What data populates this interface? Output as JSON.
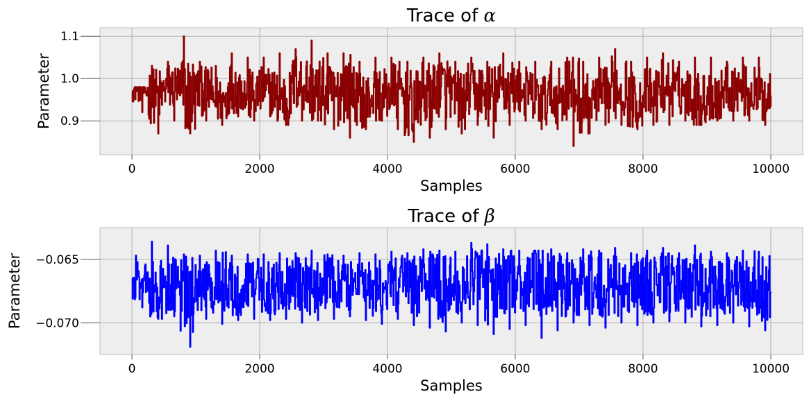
{
  "chart_data": [
    {
      "type": "line",
      "title_prefix": "Trace of ",
      "title_symbol": "α",
      "xlabel": "Samples",
      "ylabel": "Parameter",
      "xlim": [
        -500,
        10500
      ],
      "ylim": [
        0.82,
        1.12
      ],
      "xticks": [
        0,
        2000,
        4000,
        6000,
        8000,
        10000
      ],
      "xtick_labels": [
        "0",
        "2000",
        "4000",
        "6000",
        "8000",
        "10000"
      ],
      "yticks": [
        0.9,
        1.0,
        1.1
      ],
      "ytick_labels": [
        "0.9",
        "1.0",
        "1.1"
      ],
      "grid": true,
      "series": [
        {
          "color": "#8b0000",
          "x": [
            0,
            250,
            500,
            750,
            1000,
            1250,
            1500,
            1750,
            2000,
            2250,
            2500,
            2750,
            3000,
            3250,
            3500,
            3750,
            4000,
            4250,
            4500,
            4750,
            5000,
            5250,
            5500,
            5750,
            6000,
            6250,
            6500,
            6750,
            7000,
            7250,
            7500,
            7750,
            8000,
            8250,
            8500,
            8750,
            9000,
            9250,
            9500,
            9750,
            10000
          ],
          "y": [
            0.97,
            0.96,
            0.98,
            0.96,
            0.97,
            0.95,
            0.98,
            0.96,
            0.97,
            0.95,
            0.99,
            0.97,
            0.96,
            0.98,
            0.95,
            0.96,
            0.97,
            0.94,
            0.96,
            0.98,
            0.95,
            0.97,
            0.96,
            0.98,
            0.97,
            0.95,
            0.96,
            0.97,
            0.94,
            0.96,
            0.98,
            0.95,
            0.96,
            0.98,
            0.97,
            0.95,
            0.96,
            0.98,
            0.97,
            0.96,
            0.96
          ],
          "y_min": [
            0.92,
            0.87,
            0.9,
            0.87,
            0.9,
            0.89,
            0.91,
            0.9,
            0.91,
            0.89,
            0.9,
            0.9,
            0.88,
            0.86,
            0.88,
            0.9,
            0.88,
            0.85,
            0.86,
            0.88,
            0.87,
            0.89,
            0.86,
            0.89,
            0.9,
            0.88,
            0.88,
            0.84,
            0.87,
            0.89,
            0.89,
            0.88,
            0.89,
            0.89,
            0.9,
            0.89,
            0.9,
            0.9,
            0.9,
            0.89,
            0.93
          ],
          "y_max": [
            0.98,
            1.03,
            1.04,
            1.1,
            1.04,
            1.03,
            1.06,
            1.05,
            1.05,
            1.06,
            1.07,
            1.09,
            1.06,
            1.06,
            1.04,
            1.05,
            1.05,
            1.04,
            1.05,
            1.06,
            1.04,
            1.05,
            1.04,
            1.06,
            1.04,
            1.04,
            1.04,
            1.05,
            1.04,
            1.05,
            1.07,
            1.04,
            1.05,
            1.06,
            1.04,
            1.05,
            1.05,
            1.04,
            1.05,
            1.05,
            1.05
          ]
        }
      ]
    },
    {
      "type": "line",
      "title_prefix": "Trace of ",
      "title_symbol": "β",
      "xlabel": "Samples",
      "ylabel": "Parameter",
      "xlim": [
        -500,
        10500
      ],
      "ylim": [
        -0.0725,
        -0.0625
      ],
      "xticks": [
        0,
        2000,
        4000,
        6000,
        8000,
        10000
      ],
      "xtick_labels": [
        "0",
        "2000",
        "4000",
        "6000",
        "8000",
        "10000"
      ],
      "yticks": [
        -0.065,
        -0.07
      ],
      "ytick_labels": [
        "−0.065",
        "−0.070"
      ],
      "grid": true,
      "series": [
        {
          "color": "#0000ff",
          "x": [
            0,
            250,
            500,
            750,
            1000,
            1250,
            1500,
            1750,
            2000,
            2250,
            2500,
            2750,
            3000,
            3250,
            3500,
            3750,
            4000,
            4250,
            4500,
            4750,
            5000,
            5250,
            5500,
            5750,
            6000,
            6250,
            6500,
            6750,
            7000,
            7250,
            7500,
            7750,
            8000,
            8250,
            8500,
            8750,
            9000,
            9250,
            9500,
            9750,
            10000
          ],
          "y": [
            -0.0665,
            -0.0675,
            -0.0672,
            -0.0678,
            -0.067,
            -0.0668,
            -0.0673,
            -0.067,
            -0.0672,
            -0.0669,
            -0.0671,
            -0.0674,
            -0.0668,
            -0.067,
            -0.0673,
            -0.0672,
            -0.0669,
            -0.0671,
            -0.0668,
            -0.0673,
            -0.067,
            -0.0668,
            -0.0672,
            -0.0669,
            -0.0671,
            -0.0667,
            -0.067,
            -0.0673,
            -0.0668,
            -0.067,
            -0.0672,
            -0.0669,
            -0.067,
            -0.0668,
            -0.0671,
            -0.0669,
            -0.0672,
            -0.067,
            -0.0668,
            -0.0673,
            -0.0677
          ],
          "y_min": [
            -0.0688,
            -0.0697,
            -0.0695,
            -0.0719,
            -0.0697,
            -0.0701,
            -0.0698,
            -0.0697,
            -0.0698,
            -0.0697,
            -0.07,
            -0.0698,
            -0.0697,
            -0.0695,
            -0.0698,
            -0.0701,
            -0.0697,
            -0.0702,
            -0.0704,
            -0.0707,
            -0.07,
            -0.0702,
            -0.0709,
            -0.0705,
            -0.0702,
            -0.0712,
            -0.0706,
            -0.07,
            -0.0702,
            -0.0704,
            -0.07,
            -0.0702,
            -0.07,
            -0.0699,
            -0.07,
            -0.0703,
            -0.0702,
            -0.07,
            -0.0703,
            -0.0706,
            -0.0692
          ],
          "y_max": [
            -0.0647,
            -0.0636,
            -0.0639,
            -0.0646,
            -0.0647,
            -0.0643,
            -0.0647,
            -0.0646,
            -0.0646,
            -0.0645,
            -0.0645,
            -0.0643,
            -0.0646,
            -0.0647,
            -0.0645,
            -0.0646,
            -0.0644,
            -0.0645,
            -0.0642,
            -0.0643,
            -0.0644,
            -0.0637,
            -0.0638,
            -0.0642,
            -0.0643,
            -0.0643,
            -0.0642,
            -0.0645,
            -0.0642,
            -0.0643,
            -0.0641,
            -0.0645,
            -0.0643,
            -0.0641,
            -0.0645,
            -0.0639,
            -0.0644,
            -0.0645,
            -0.0643,
            -0.0644,
            -0.0648
          ]
        }
      ]
    }
  ]
}
